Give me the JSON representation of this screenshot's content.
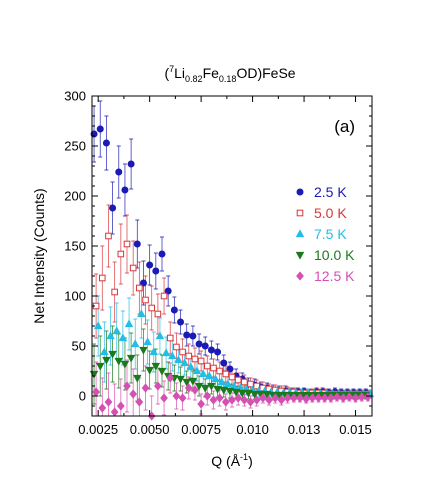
{
  "chart_data": {
    "type": "scatter",
    "title_parts": [
      "(",
      "7",
      "Li",
      "0.82",
      "Fe",
      "0.18",
      "OD)FeSe"
    ],
    "panel_label": "(a)",
    "xlabel_parts": [
      "Q (Å",
      "-1",
      ")"
    ],
    "ylabel": "Net Intensity (Counts)",
    "xlim": [
      0.0022,
      0.0158
    ],
    "ylim": [
      -20,
      300
    ],
    "xticks": [
      {
        "v": 0.0025,
        "label": "0.0025"
      },
      {
        "v": 0.005,
        "label": "0.0050"
      },
      {
        "v": 0.0075,
        "label": "0.0075"
      },
      {
        "v": 0.01,
        "label": "0.010"
      },
      {
        "v": 0.0125,
        "label": "0.013"
      },
      {
        "v": 0.015,
        "label": "0.015"
      }
    ],
    "yticks": [
      0,
      50,
      100,
      150,
      200,
      250,
      300
    ],
    "legend_position": "right",
    "series": [
      {
        "name": "2.5 K",
        "color": "#1a1ab4",
        "marker": "circle",
        "filled": true,
        "x": [
          0.0023,
          0.0026,
          0.0029,
          0.0032,
          0.0035,
          0.0038,
          0.0041,
          0.0044,
          0.0047,
          0.005,
          0.0053,
          0.0056,
          0.0059,
          0.0062,
          0.0065,
          0.0068,
          0.0071,
          0.0074,
          0.0077,
          0.008,
          0.0083,
          0.0086,
          0.0089,
          0.0092,
          0.0095,
          0.0098,
          0.0101,
          0.0104,
          0.0107,
          0.011,
          0.0113,
          0.0116,
          0.0119,
          0.0122,
          0.0125,
          0.0128,
          0.0131,
          0.0134,
          0.0137,
          0.014,
          0.0143,
          0.0146,
          0.0149,
          0.0152,
          0.0155
        ],
        "y": [
          262,
          267,
          253,
          188,
          224,
          206,
          232,
          152,
          113,
          131,
          125,
          142,
          105,
          86,
          74,
          61,
          60,
          52,
          50,
          46,
          44,
          33,
          27,
          20,
          17,
          12,
          11,
          9,
          8,
          6,
          5,
          5,
          4,
          4,
          4,
          3,
          4,
          4,
          3,
          4,
          3,
          3,
          3,
          3,
          3
        ],
        "err": [
          28,
          28,
          27,
          26,
          26,
          26,
          25,
          24,
          22,
          20,
          18,
          17,
          15,
          13,
          12,
          11,
          10,
          10,
          9,
          9,
          8,
          8,
          7,
          7,
          6,
          6,
          6,
          5,
          5,
          5,
          5,
          5,
          4,
          4,
          4,
          4,
          4,
          4,
          4,
          4,
          4,
          4,
          4,
          4,
          4
        ]
      },
      {
        "name": "5.0 K",
        "color": "#d9353a",
        "marker": "square",
        "filled": false,
        "x": [
          0.0024,
          0.0027,
          0.003,
          0.0033,
          0.0036,
          0.0039,
          0.0042,
          0.0045,
          0.0048,
          0.0051,
          0.0054,
          0.0057,
          0.006,
          0.0063,
          0.0066,
          0.0069,
          0.0072,
          0.0075,
          0.0078,
          0.0081,
          0.0084,
          0.0087,
          0.009,
          0.0093,
          0.0096,
          0.0099,
          0.0102,
          0.0105,
          0.0108,
          0.0111,
          0.0114,
          0.0117,
          0.012,
          0.0123,
          0.0126,
          0.0129,
          0.0132,
          0.0135,
          0.0138,
          0.0141,
          0.0144,
          0.0147,
          0.015,
          0.0153,
          0.0156
        ],
        "y": [
          90,
          118,
          160,
          104,
          142,
          152,
          128,
          108,
          96,
          88,
          82,
          100,
          58,
          49,
          44,
          40,
          37,
          35,
          30,
          28,
          25,
          22,
          19,
          16,
          14,
          12,
          10,
          8,
          7,
          6,
          5,
          4,
          4,
          3,
          3,
          3,
          3,
          3,
          2,
          2,
          2,
          2,
          2,
          2,
          2
        ],
        "err": [
          32,
          32,
          31,
          30,
          30,
          29,
          27,
          26,
          24,
          22,
          20,
          18,
          16,
          14,
          13,
          12,
          11,
          10,
          10,
          9,
          9,
          8,
          8,
          7,
          7,
          6,
          6,
          6,
          5,
          5,
          5,
          5,
          4,
          4,
          4,
          4,
          4,
          4,
          4,
          4,
          4,
          4,
          4,
          4,
          4
        ]
      },
      {
        "name": "7.5 K",
        "color": "#23bde6",
        "marker": "triangle-up",
        "filled": true,
        "x": [
          0.0025,
          0.0028,
          0.0031,
          0.0034,
          0.0037,
          0.004,
          0.0043,
          0.0046,
          0.0049,
          0.0052,
          0.0055,
          0.0058,
          0.0061,
          0.0064,
          0.0067,
          0.007,
          0.0073,
          0.0076,
          0.0079,
          0.0082,
          0.0085,
          0.0088,
          0.0091,
          0.0094,
          0.0097,
          0.01,
          0.0103,
          0.0106,
          0.0109,
          0.0112,
          0.0115,
          0.0118,
          0.0121,
          0.0124,
          0.0127,
          0.013,
          0.0133,
          0.0136,
          0.0139,
          0.0142,
          0.0145,
          0.0148,
          0.0151,
          0.0154,
          0.0157
        ],
        "y": [
          70,
          44,
          60,
          65,
          58,
          72,
          52,
          82,
          54,
          44,
          60,
          43,
          40,
          36,
          33,
          29,
          25,
          22,
          20,
          17,
          14,
          12,
          10,
          8,
          7,
          6,
          5,
          5,
          4,
          4,
          3,
          3,
          3,
          3,
          3,
          2,
          2,
          2,
          2,
          2,
          2,
          2,
          2,
          2,
          2
        ],
        "err": [
          30,
          30,
          29,
          28,
          27,
          26,
          25,
          24,
          22,
          20,
          18,
          16,
          15,
          13,
          12,
          11,
          10,
          10,
          9,
          9,
          8,
          8,
          7,
          7,
          6,
          6,
          6,
          5,
          5,
          5,
          5,
          5,
          4,
          4,
          4,
          4,
          4,
          4,
          4,
          4,
          4,
          4,
          4,
          4,
          4
        ]
      },
      {
        "name": "10.0 K",
        "color": "#1b7a1b",
        "marker": "triangle-down",
        "filled": true,
        "x": [
          0.0023,
          0.0026,
          0.0029,
          0.0032,
          0.0035,
          0.0038,
          0.0041,
          0.0044,
          0.0047,
          0.005,
          0.0053,
          0.0056,
          0.0059,
          0.0062,
          0.0065,
          0.0068,
          0.0071,
          0.0074,
          0.0077,
          0.008,
          0.0083,
          0.0086,
          0.0089,
          0.0092,
          0.0095,
          0.0098,
          0.0101,
          0.0104,
          0.0107,
          0.011,
          0.0113,
          0.0116,
          0.0119,
          0.0122,
          0.0125,
          0.0128,
          0.0131,
          0.0134,
          0.0137,
          0.014,
          0.0143,
          0.0146,
          0.0149,
          0.0152,
          0.0155
        ],
        "y": [
          22,
          30,
          36,
          42,
          35,
          32,
          38,
          18,
          46,
          26,
          30,
          25,
          20,
          18,
          17,
          14,
          15,
          10,
          8,
          10,
          7,
          6,
          5,
          4,
          3,
          3,
          2,
          2,
          2,
          1,
          1,
          1,
          1,
          1,
          1,
          1,
          1,
          1,
          1,
          1,
          1,
          1,
          1,
          1,
          1
        ],
        "err": [
          30,
          30,
          29,
          28,
          27,
          26,
          25,
          23,
          21,
          19,
          17,
          16,
          14,
          13,
          12,
          11,
          10,
          10,
          9,
          8,
          8,
          7,
          7,
          6,
          6,
          6,
          5,
          5,
          5,
          5,
          4,
          4,
          4,
          4,
          4,
          4,
          4,
          4,
          4,
          4,
          4,
          4,
          4,
          4,
          4
        ]
      },
      {
        "name": "12.5 K",
        "color": "#d64fb2",
        "marker": "diamond",
        "filled": true,
        "x": [
          0.0024,
          0.0027,
          0.003,
          0.0033,
          0.0036,
          0.0039,
          0.0042,
          0.0045,
          0.0048,
          0.0051,
          0.0054,
          0.0057,
          0.006,
          0.0063,
          0.0066,
          0.0069,
          0.0072,
          0.0075,
          0.0078,
          0.0081,
          0.0084,
          0.0087,
          0.009,
          0.0093,
          0.0096,
          0.0099,
          0.0102,
          0.0105,
          0.0108,
          0.0111,
          0.0114,
          0.0117,
          0.012,
          0.0123,
          0.0126,
          0.0129,
          0.0132,
          0.0135,
          0.0138,
          0.0141,
          0.0144,
          0.0147,
          0.015,
          0.0153,
          0.0156
        ],
        "y": [
          4,
          -12,
          -6,
          -16,
          -10,
          10,
          2,
          -6,
          8,
          -20,
          10,
          -2,
          18,
          0,
          -2,
          8,
          6,
          -8,
          0,
          -4,
          -2,
          -6,
          -4,
          -2,
          -4,
          -6,
          -4,
          -2,
          -4,
          -2,
          -4,
          -2,
          -2,
          -2,
          -3,
          -2,
          -2,
          -2,
          -2,
          -1,
          -2,
          -1,
          -2,
          -1,
          -1
        ],
        "err": [
          30,
          30,
          29,
          28,
          27,
          26,
          25,
          24,
          22,
          20,
          18,
          17,
          15,
          13,
          12,
          11,
          10,
          10,
          9,
          9,
          8,
          8,
          7,
          7,
          6,
          6,
          6,
          5,
          5,
          5,
          5,
          5,
          4,
          4,
          4,
          4,
          4,
          4,
          4,
          4,
          4,
          4,
          4,
          4,
          4
        ]
      }
    ]
  }
}
